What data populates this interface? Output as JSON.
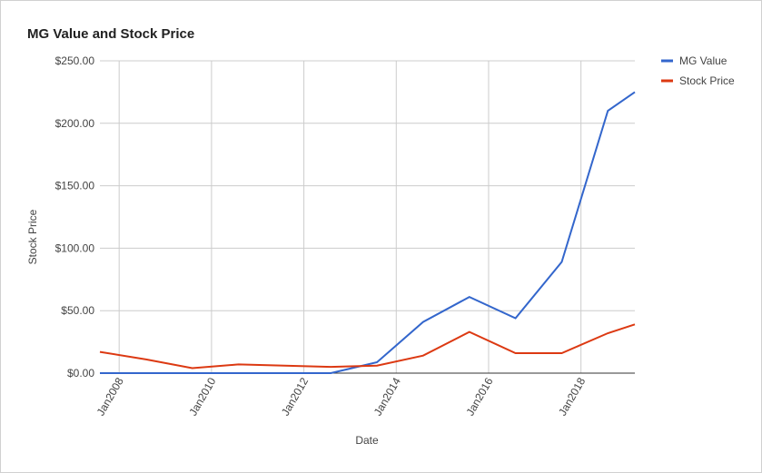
{
  "chart_data": {
    "type": "line",
    "title": "MG Value and Stock Price",
    "x_label": "Date",
    "y_label": "Stock Price",
    "x": [
      "2007-08",
      "2008-08",
      "2009-08",
      "2010-08",
      "2011-08",
      "2012-08",
      "2013-08",
      "2014-08",
      "2015-08",
      "2016-08",
      "2017-08",
      "2018-08",
      "2019-03"
    ],
    "series": [
      {
        "name": "MG Value",
        "color": "#3366cc",
        "values": [
          0,
          0,
          0,
          0,
          0,
          0,
          8.7,
          41,
          61,
          44,
          89,
          210,
          225
        ]
      },
      {
        "name": "Stock Price",
        "color": "#dc3912",
        "values": [
          17,
          11,
          4,
          7,
          6,
          5,
          6,
          14,
          33,
          16,
          16,
          32,
          39
        ]
      }
    ],
    "xlim": [
      "2007-08",
      "2019-03"
    ],
    "xticks": [
      {
        "value": "2008-01",
        "label": "Jan2008"
      },
      {
        "value": "2010-01",
        "label": "Jan2010"
      },
      {
        "value": "2012-01",
        "label": "Jan2012"
      },
      {
        "value": "2014-01",
        "label": "Jan2014"
      },
      {
        "value": "2016-01",
        "label": "Jan2016"
      },
      {
        "value": "2018-01",
        "label": "Jan2018"
      }
    ],
    "ylim": [
      0,
      250
    ],
    "yticks": [
      {
        "value": 0,
        "label": "$0.00"
      },
      {
        "value": 50,
        "label": "$50.00"
      },
      {
        "value": 100,
        "label": "$100.00"
      },
      {
        "value": 150,
        "label": "$150.00"
      },
      {
        "value": 200,
        "label": "$200.00"
      },
      {
        "value": 250,
        "label": "$250.00"
      }
    ],
    "grid": true,
    "legend": "right"
  }
}
